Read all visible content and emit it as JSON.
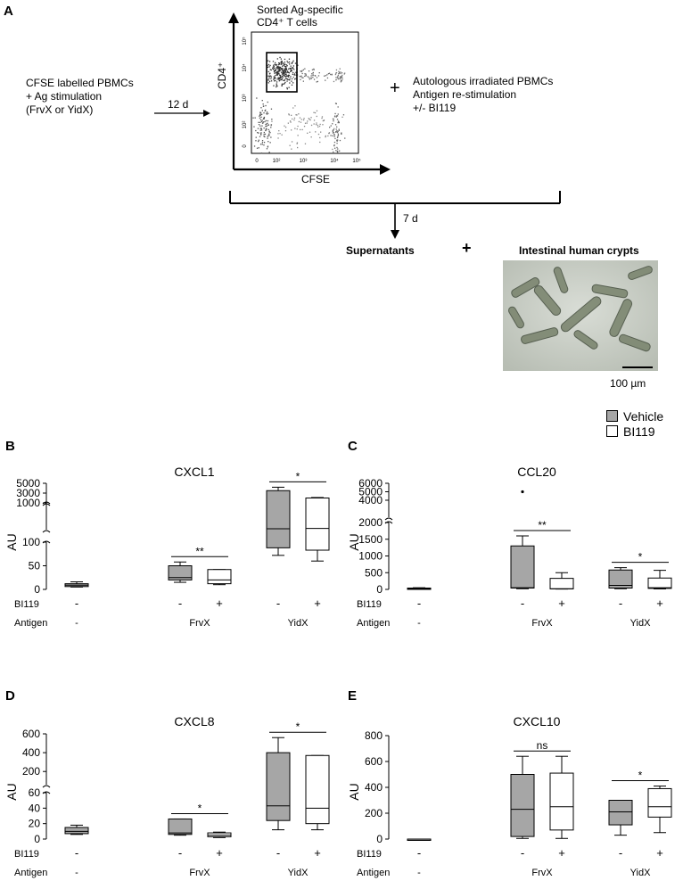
{
  "panel_a": {
    "letter": "A",
    "left_text": [
      "CFSE labelled PBMCs",
      "+ Ag stimulation",
      "(FrvX or YidX)"
    ],
    "arrow_label": "12 d",
    "sort_title": [
      "Sorted Ag-specific",
      "CD4⁺ T cells"
    ],
    "flow_y_label": "CD4⁺",
    "flow_x_label": "CFSE",
    "flow_x_ticks": [
      "0",
      "10²",
      "10³",
      "10⁴",
      "10⁵"
    ],
    "flow_y_ticks": [
      "0",
      "10²",
      "10³",
      "10⁴",
      "10⁵"
    ],
    "plus": "+",
    "right_text": [
      "Autologous irradiated PBMCs",
      "Antigen re-stimulation",
      "+/- BI119"
    ],
    "down_label": "7 d",
    "supernatants": "Supernatants",
    "plus2": "+",
    "crypts_title": "Intestinal human crypts",
    "scale_bar": "100 µm"
  },
  "legend": {
    "items": [
      {
        "label": "Vehicle",
        "fill": "#a6a6a6"
      },
      {
        "label": "BI119",
        "fill": "#ffffff"
      }
    ]
  },
  "chart_data": [
    {
      "panel": "B",
      "title": "CXCL1",
      "type": "box",
      "ylabel": "AU",
      "broken_axis": true,
      "lower_ticks": [
        0,
        50,
        100
      ],
      "upper_ticks": [
        1000,
        3000,
        5000
      ],
      "bi119_row": [
        "-",
        "-",
        "+",
        "-",
        "+"
      ],
      "antigen_row": [
        "-",
        "FrvX",
        "YidX"
      ],
      "boxes": [
        {
          "group": "-",
          "treatment": "Vehicle",
          "min": 5,
          "q1": 6,
          "median": 9,
          "q3": 12,
          "max": 16
        },
        {
          "group": "FrvX",
          "treatment": "Vehicle",
          "min": 15,
          "q1": 20,
          "median": 25,
          "q3": 50,
          "max": 58
        },
        {
          "group": "FrvX",
          "treatment": "BI119",
          "min": 10,
          "q1": 12,
          "median": 20,
          "q3": 42,
          "max": 42
        },
        {
          "group": "YidX",
          "treatment": "Vehicle",
          "min": 72,
          "q1": 88,
          "median": 130,
          "q3": 3500,
          "max": 4200
        },
        {
          "group": "YidX",
          "treatment": "BI119",
          "min": 60,
          "q1": 83,
          "median": 140,
          "q3": 2000,
          "max": 2100
        }
      ],
      "sig": [
        {
          "label": "**",
          "between": "FrvX"
        },
        {
          "label": "*",
          "between": "YidX"
        }
      ]
    },
    {
      "panel": "C",
      "title": "CCL20",
      "type": "box",
      "ylabel": "AU",
      "broken_axis": true,
      "lower_ticks": [
        0,
        500,
        1000,
        1500,
        2000
      ],
      "upper_ticks": [
        2000,
        4000,
        5000,
        6000
      ],
      "bi119_row": [
        "-",
        "-",
        "+",
        "-",
        "+"
      ],
      "antigen_row": [
        "-",
        "FrvX",
        "YidX"
      ],
      "boxes": [
        {
          "group": "-",
          "treatment": "Vehicle",
          "min": 10,
          "q1": 15,
          "median": 25,
          "q3": 40,
          "max": 50
        },
        {
          "group": "FrvX",
          "treatment": "Vehicle",
          "min": 20,
          "q1": 40,
          "median": 50,
          "q3": 1300,
          "max": 1600,
          "outlier": 5000
        },
        {
          "group": "FrvX",
          "treatment": "BI119",
          "min": 10,
          "q1": 15,
          "median": 20,
          "q3": 330,
          "max": 500
        },
        {
          "group": "YidX",
          "treatment": "Vehicle",
          "min": 20,
          "q1": 40,
          "median": 120,
          "q3": 580,
          "max": 650
        },
        {
          "group": "YidX",
          "treatment": "BI119",
          "min": 15,
          "q1": 30,
          "median": 50,
          "q3": 340,
          "max": 570
        }
      ],
      "sig": [
        {
          "label": "**",
          "between": "FrvX"
        },
        {
          "label": "*",
          "between": "YidX"
        }
      ]
    },
    {
      "panel": "D",
      "title": "CXCL8",
      "type": "box",
      "ylabel": "AU",
      "broken_axis": true,
      "lower_ticks": [
        0,
        20,
        40,
        60
      ],
      "upper_ticks": [
        200,
        400,
        600
      ],
      "bi119_row": [
        "-",
        "-",
        "+",
        "-",
        "+"
      ],
      "antigen_row": [
        "-",
        "FrvX",
        "YidX"
      ],
      "boxes": [
        {
          "group": "-",
          "treatment": "Vehicle",
          "min": 6,
          "q1": 7,
          "median": 10,
          "q3": 15,
          "max": 18
        },
        {
          "group": "FrvX",
          "treatment": "Vehicle",
          "min": 5,
          "q1": 6,
          "median": 8,
          "q3": 26,
          "max": 26
        },
        {
          "group": "FrvX",
          "treatment": "BI119",
          "min": 2,
          "q1": 3,
          "median": 5,
          "q3": 8,
          "max": 9
        },
        {
          "group": "YidX",
          "treatment": "Vehicle",
          "min": 12,
          "q1": 24,
          "median": 43,
          "q3": 400,
          "max": 560
        },
        {
          "group": "YidX",
          "treatment": "BI119",
          "min": 12,
          "q1": 20,
          "median": 40,
          "q3": 370,
          "max": 370
        }
      ],
      "sig": [
        {
          "label": "*",
          "between": "FrvX"
        },
        {
          "label": "*",
          "between": "YidX"
        }
      ]
    },
    {
      "panel": "E",
      "title": "CXCL10",
      "type": "box",
      "ylabel": "AU",
      "broken_axis": false,
      "ticks": [
        0,
        200,
        400,
        600,
        800
      ],
      "bi119_row": [
        "-",
        "-",
        "+",
        "-",
        "+"
      ],
      "antigen_row": [
        "-",
        "FrvX",
        "YidX"
      ],
      "boxes": [
        {
          "group": "-",
          "treatment": "Vehicle",
          "min": 0,
          "q1": 0,
          "median": 0,
          "q3": 0,
          "max": 0
        },
        {
          "group": "FrvX",
          "treatment": "Vehicle",
          "min": 5,
          "q1": 20,
          "median": 230,
          "q3": 500,
          "max": 640
        },
        {
          "group": "FrvX",
          "treatment": "BI119",
          "min": 5,
          "q1": 70,
          "median": 250,
          "q3": 510,
          "max": 640
        },
        {
          "group": "YidX",
          "treatment": "Vehicle",
          "min": 30,
          "q1": 110,
          "median": 210,
          "q3": 300,
          "max": 300
        },
        {
          "group": "YidX",
          "treatment": "BI119",
          "min": 50,
          "q1": 170,
          "median": 250,
          "q3": 390,
          "max": 410
        }
      ],
      "sig": [
        {
          "label": "ns",
          "between": "FrvX"
        },
        {
          "label": "*",
          "between": "YidX"
        }
      ]
    }
  ],
  "row_labels": {
    "bi119": "BI119",
    "antigen": "Antigen"
  }
}
